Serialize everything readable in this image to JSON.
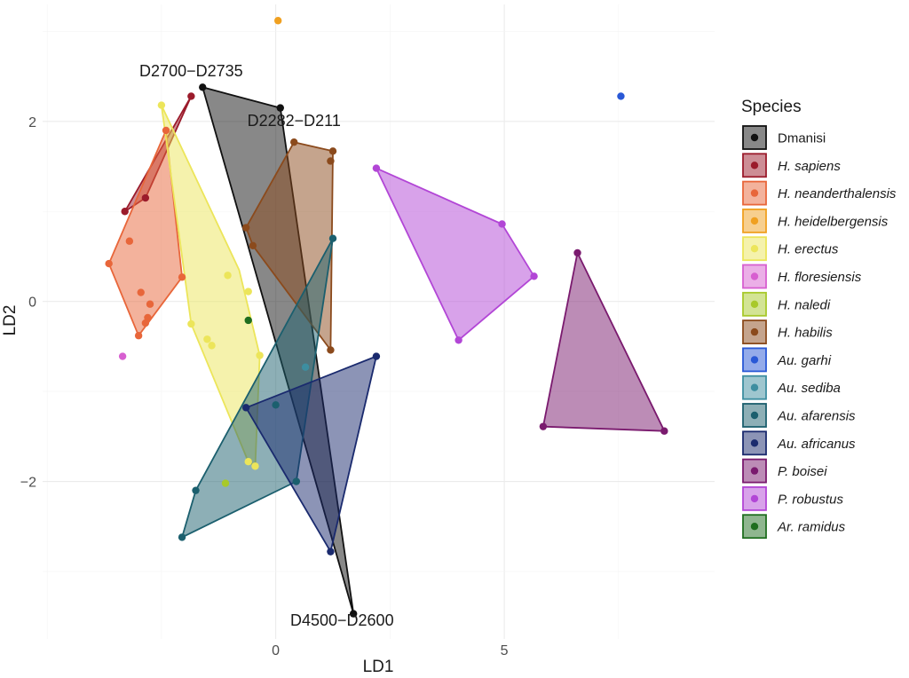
{
  "chart_data": {
    "type": "scatter",
    "title": "",
    "xlabel": "LD1",
    "ylabel": "LD2",
    "xlim": [
      -5.1,
      9.6
    ],
    "ylim": [
      -3.75,
      3.3
    ],
    "x_ticks": [
      0,
      5
    ],
    "y_ticks": [
      -2,
      0,
      2
    ],
    "grid": true,
    "legend": {
      "title": "Species",
      "placement": "right"
    },
    "series": [
      {
        "name": "Dmanisi",
        "italic": false,
        "color": "#111111",
        "hull": [
          [
            -1.6,
            2.38
          ],
          [
            0.1,
            2.15
          ],
          [
            1.7,
            -3.47
          ]
        ],
        "points": [
          [
            -1.6,
            2.38
          ],
          [
            0.1,
            2.15
          ],
          [
            1.7,
            -3.47
          ]
        ]
      },
      {
        "name": "H. sapiens",
        "italic": true,
        "color": "#9b1b2b",
        "hull": [
          [
            -3.3,
            1.0
          ],
          [
            -1.85,
            2.28
          ],
          [
            -2.85,
            1.15
          ]
        ],
        "points": [
          [
            -3.3,
            1.0
          ],
          [
            -1.85,
            2.28
          ],
          [
            -2.85,
            1.15
          ]
        ]
      },
      {
        "name": "H. neanderthalensis",
        "italic": true,
        "color": "#e8663a",
        "hull": [
          [
            -3.65,
            0.42
          ],
          [
            -2.4,
            1.9
          ],
          [
            -2.05,
            0.27
          ],
          [
            -3.0,
            -0.38
          ]
        ],
        "points": [
          [
            -3.65,
            0.42
          ],
          [
            -2.4,
            1.9
          ],
          [
            -2.05,
            0.27
          ],
          [
            -3.0,
            -0.38
          ],
          [
            -3.2,
            0.67
          ],
          [
            -2.95,
            0.1
          ],
          [
            -2.75,
            -0.03
          ],
          [
            -2.8,
            -0.18
          ],
          [
            -2.85,
            -0.24
          ]
        ]
      },
      {
        "name": "H. heidelbergensis",
        "italic": true,
        "color": "#f0a020",
        "hull": [],
        "points": [
          [
            0.05,
            3.12
          ]
        ]
      },
      {
        "name": "H. erectus",
        "italic": true,
        "color": "#ece55a",
        "hull": [
          [
            -2.5,
            2.18
          ],
          [
            -0.8,
            0.35
          ],
          [
            -0.35,
            -0.6
          ],
          [
            -0.45,
            -1.83
          ],
          [
            -0.6,
            -1.78
          ],
          [
            -1.85,
            -0.25
          ]
        ],
        "points": [
          [
            -2.5,
            2.18
          ],
          [
            -1.85,
            -0.25
          ],
          [
            -1.5,
            -0.42
          ],
          [
            -1.4,
            -0.49
          ],
          [
            -1.05,
            0.29
          ],
          [
            -0.6,
            0.11
          ],
          [
            -0.35,
            -0.6
          ],
          [
            -0.45,
            -1.83
          ],
          [
            -0.6,
            -1.78
          ]
        ]
      },
      {
        "name": "H. floresiensis",
        "italic": true,
        "color": "#d75fd0",
        "hull": [],
        "points": [
          [
            -3.35,
            -0.61
          ]
        ]
      },
      {
        "name": "H. naledi",
        "italic": true,
        "color": "#a8c92a",
        "hull": [],
        "points": [
          [
            -1.1,
            -2.02
          ]
        ]
      },
      {
        "name": "H. habilis",
        "italic": true,
        "color": "#8b4a1c",
        "hull": [
          [
            -0.65,
            0.82
          ],
          [
            0.4,
            1.77
          ],
          [
            1.25,
            1.67
          ],
          [
            1.2,
            -0.54
          ],
          [
            -0.5,
            0.62
          ]
        ],
        "points": [
          [
            -0.65,
            0.82
          ],
          [
            0.4,
            1.77
          ],
          [
            1.25,
            1.67
          ],
          [
            1.2,
            1.56
          ],
          [
            1.2,
            -0.54
          ],
          [
            -0.5,
            0.62
          ]
        ]
      },
      {
        "name": "Au. garhi",
        "italic": true,
        "color": "#2958d6",
        "hull": [],
        "points": [
          [
            7.55,
            2.28
          ]
        ]
      },
      {
        "name": "Au. sediba",
        "italic": true,
        "color": "#3d8ea0",
        "hull": [],
        "points": [
          [
            0.65,
            -0.73
          ]
        ]
      },
      {
        "name": "Au. afarensis",
        "italic": true,
        "color": "#1b5f6e",
        "hull": [
          [
            1.25,
            0.7
          ],
          [
            0.45,
            -2.0
          ],
          [
            -2.05,
            -2.62
          ],
          [
            -1.75,
            -2.1
          ]
        ],
        "points": [
          [
            1.25,
            0.7
          ],
          [
            0.45,
            -2.0
          ],
          [
            -2.05,
            -2.62
          ],
          [
            -1.75,
            -2.1
          ],
          [
            0.0,
            -1.15
          ]
        ]
      },
      {
        "name": "Au. africanus",
        "italic": true,
        "color": "#1a2a6e",
        "hull": [
          [
            -0.65,
            -1.18
          ],
          [
            2.2,
            -0.61
          ],
          [
            1.2,
            -2.78
          ]
        ],
        "points": [
          [
            -0.65,
            -1.18
          ],
          [
            2.2,
            -0.61
          ],
          [
            1.2,
            -2.78
          ]
        ]
      },
      {
        "name": "P. boisei",
        "italic": true,
        "color": "#7a1a6e",
        "hull": [
          [
            6.6,
            0.54
          ],
          [
            8.5,
            -1.44
          ],
          [
            5.85,
            -1.39
          ]
        ],
        "points": [
          [
            6.6,
            0.54
          ],
          [
            8.5,
            -1.44
          ],
          [
            5.85,
            -1.39
          ]
        ]
      },
      {
        "name": "P. robustus",
        "italic": true,
        "color": "#b246d6",
        "hull": [
          [
            2.2,
            1.48
          ],
          [
            4.95,
            0.86
          ],
          [
            5.65,
            0.28
          ],
          [
            4.0,
            -0.43
          ]
        ],
        "points": [
          [
            2.2,
            1.48
          ],
          [
            4.95,
            0.86
          ],
          [
            5.65,
            0.28
          ],
          [
            4.0,
            -0.43
          ]
        ]
      },
      {
        "name": "Ar. ramidus",
        "italic": true,
        "color": "#1f6e1f",
        "hull": [],
        "points": [
          [
            -0.6,
            -0.21
          ]
        ]
      }
    ],
    "annotations": [
      {
        "text": "D2700−D2735",
        "x": -1.85,
        "y": 2.5
      },
      {
        "text": "D2282−D211",
        "x": 0.4,
        "y": 1.95
      },
      {
        "text": "D4500−D2600",
        "x": 1.45,
        "y": -3.6
      }
    ]
  }
}
